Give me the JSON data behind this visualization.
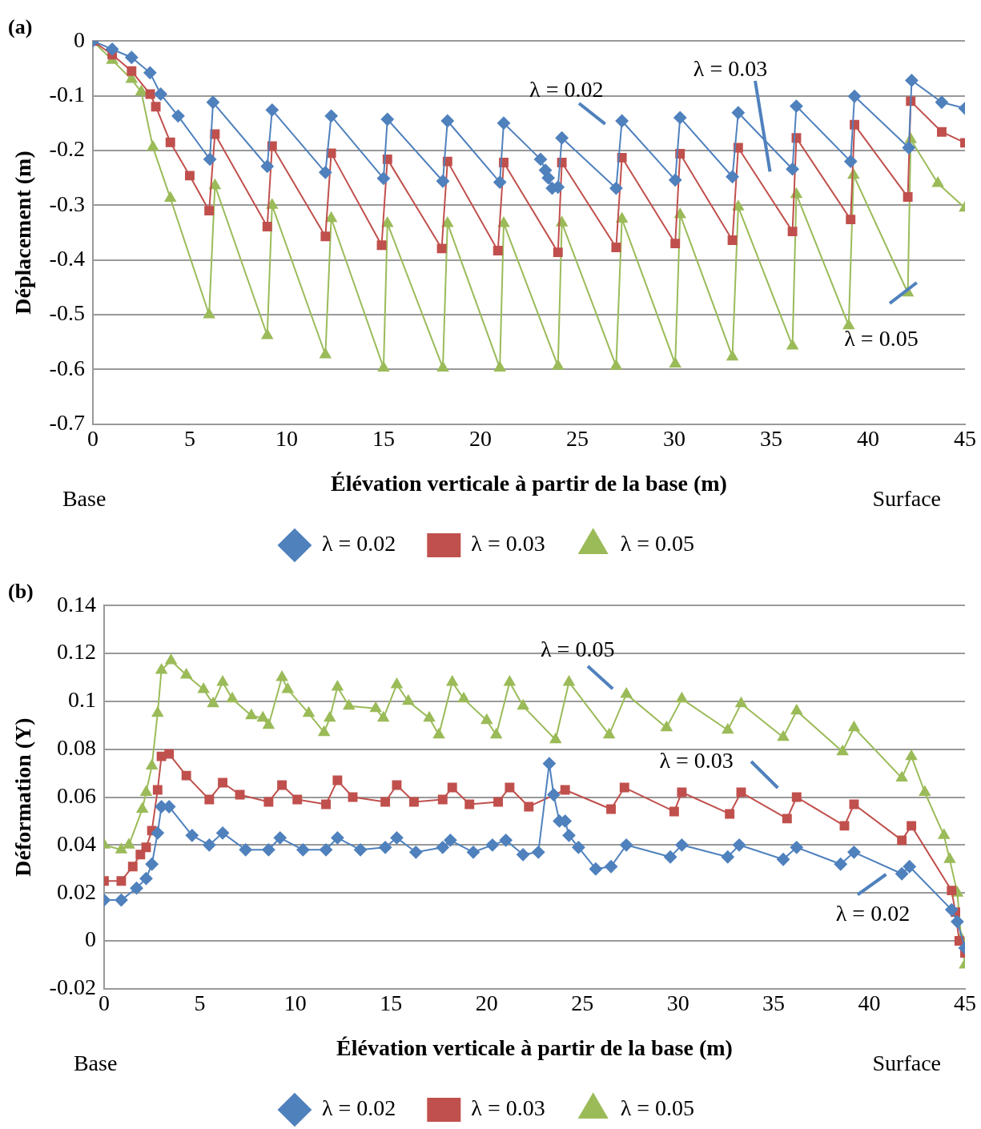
{
  "chart_data": [
    {
      "type": "line",
      "title": "(a)",
      "xlabel": "Élévation verticale à partir de la base (m)",
      "ylabel": "Déplacement (m)",
      "xlim": [
        0,
        45
      ],
      "xticks": [
        0,
        5,
        10,
        15,
        20,
        25,
        30,
        35,
        40,
        45
      ],
      "ylim": [
        -0.7,
        0
      ],
      "yticks": [
        -0.7,
        -0.6,
        -0.5,
        -0.4,
        -0.3,
        -0.2,
        -0.1,
        0
      ],
      "grid": "y",
      "legend": "bottom",
      "line_style": "solid",
      "series": [
        {
          "name": "λ = 0.02",
          "color": "#4f81bd",
          "marker": "diamond",
          "x": [
            0,
            1,
            2,
            2.95,
            3.5,
            4.4,
            6.04,
            6.2,
            9.0,
            9.25,
            12.0,
            12.3,
            15.0,
            15.2,
            18.06,
            18.3,
            21.0,
            21.2,
            23.1,
            23.35,
            23.5,
            23.7,
            24.0,
            24.2,
            27.0,
            27.3,
            30.05,
            30.3,
            33.0,
            33.3,
            36.1,
            36.3,
            39.1,
            39.3,
            42.1,
            42.25,
            43.8,
            45
          ],
          "values": [
            0,
            -0.015,
            -0.03,
            -0.058,
            -0.097,
            -0.137,
            -0.216,
            -0.112,
            -0.229,
            -0.126,
            -0.24,
            -0.137,
            -0.251,
            -0.143,
            -0.256,
            -0.146,
            -0.258,
            -0.15,
            -0.216,
            -0.236,
            -0.25,
            -0.269,
            -0.267,
            -0.177,
            -0.269,
            -0.146,
            -0.254,
            -0.14,
            -0.248,
            -0.131,
            -0.234,
            -0.119,
            -0.22,
            -0.101,
            -0.195,
            -0.072,
            -0.112,
            -0.123
          ]
        },
        {
          "name": "λ = 0.03",
          "color": "#c0504d",
          "marker": "square",
          "x": [
            0,
            1,
            2,
            2.96,
            3.25,
            4.0,
            5.0,
            6.0,
            6.3,
            9.0,
            9.25,
            12.0,
            12.3,
            14.9,
            15.2,
            18.0,
            18.3,
            20.9,
            21.2,
            24.0,
            24.2,
            27.0,
            27.3,
            30.05,
            30.3,
            33.0,
            33.3,
            36.1,
            36.3,
            39.1,
            39.3,
            42.05,
            42.2,
            43.8,
            45
          ],
          "values": [
            0,
            -0.025,
            -0.055,
            -0.097,
            -0.12,
            -0.185,
            -0.246,
            -0.31,
            -0.17,
            -0.339,
            -0.192,
            -0.357,
            -0.205,
            -0.373,
            -0.216,
            -0.379,
            -0.22,
            -0.383,
            -0.222,
            -0.386,
            -0.222,
            -0.377,
            -0.213,
            -0.37,
            -0.206,
            -0.364,
            -0.195,
            -0.348,
            -0.177,
            -0.326,
            -0.153,
            -0.285,
            -0.11,
            -0.166,
            -0.186
          ]
        },
        {
          "name": "λ = 0.05",
          "color": "#9bbb59",
          "marker": "triangle",
          "x": [
            0,
            1,
            2,
            2.5,
            3.1,
            4.0,
            6.0,
            6.3,
            9.0,
            9.25,
            12.0,
            12.3,
            15.0,
            15.2,
            18.06,
            18.3,
            21.0,
            21.2,
            24.0,
            24.2,
            27.0,
            27.3,
            30.05,
            30.3,
            33.0,
            33.3,
            36.1,
            36.3,
            39.0,
            39.25,
            42.05,
            42.2,
            43.6,
            45
          ],
          "values": [
            0,
            -0.035,
            -0.07,
            -0.093,
            -0.194,
            -0.287,
            -0.5,
            -0.264,
            -0.538,
            -0.3,
            -0.573,
            -0.324,
            -0.597,
            -0.333,
            -0.597,
            -0.333,
            -0.597,
            -0.333,
            -0.594,
            -0.332,
            -0.594,
            -0.325,
            -0.59,
            -0.317,
            -0.577,
            -0.303,
            -0.557,
            -0.28,
            -0.52,
            -0.245,
            -0.46,
            -0.18,
            -0.26,
            -0.305
          ]
        }
      ],
      "annotations": [
        "λ = 0.02",
        "λ = 0.03",
        "λ = 0.05",
        "Base",
        "Surface"
      ]
    },
    {
      "type": "line",
      "title": "(b)",
      "xlabel": "Élévation verticale à partir de la base (m)",
      "ylabel": "Déformation (Y)",
      "xlim": [
        0,
        45
      ],
      "xticks": [
        0,
        5,
        10,
        15,
        20,
        25,
        30,
        35,
        40,
        45
      ],
      "ylim": [
        -0.02,
        0.14
      ],
      "yticks": [
        -0.02,
        0,
        0.02,
        0.04,
        0.06,
        0.08,
        0.1,
        0.12,
        0.14
      ],
      "grid": "y",
      "legend": "bottom",
      "line_style": "solid",
      "series": [
        {
          "name": "λ = 0.02",
          "color": "#4f81bd",
          "marker": "diamond",
          "x": [
            0,
            0.9,
            1.7,
            2.2,
            2.5,
            2.8,
            3.0,
            3.4,
            4.6,
            5.5,
            6.2,
            7.4,
            8.6,
            9.2,
            10.4,
            11.6,
            12.2,
            13.4,
            14.7,
            15.3,
            16.3,
            17.7,
            18.1,
            19.3,
            20.3,
            21.0,
            21.9,
            22.7,
            23.27,
            23.5,
            23.8,
            24.1,
            24.3,
            24.8,
            25.7,
            26.5,
            27.3,
            29.6,
            30.2,
            32.6,
            33.2,
            35.5,
            36.2,
            38.5,
            39.2,
            41.7,
            42.1,
            44.3,
            44.6,
            45
          ],
          "values": [
            0.017,
            0.017,
            0.022,
            0.026,
            0.032,
            0.045,
            0.056,
            0.056,
            0.044,
            0.04,
            0.045,
            0.038,
            0.038,
            0.043,
            0.038,
            0.038,
            0.043,
            0.038,
            0.039,
            0.043,
            0.037,
            0.039,
            0.042,
            0.037,
            0.04,
            0.042,
            0.036,
            0.037,
            0.074,
            0.061,
            0.05,
            0.05,
            0.044,
            0.039,
            0.03,
            0.031,
            0.04,
            0.035,
            0.04,
            0.035,
            0.04,
            0.034,
            0.039,
            0.032,
            0.037,
            0.028,
            0.031,
            0.013,
            0.008,
            -0.003
          ]
        },
        {
          "name": "λ = 0.03",
          "color": "#c0504d",
          "marker": "square",
          "x": [
            0,
            0.9,
            1.5,
            1.9,
            2.2,
            2.5,
            2.8,
            3.0,
            3.4,
            4.3,
            5.5,
            6.2,
            7.1,
            8.6,
            9.3,
            10.1,
            11.6,
            12.2,
            13.0,
            14.7,
            15.3,
            16.2,
            17.7,
            18.2,
            19.1,
            20.6,
            21.2,
            22.2,
            24.1,
            26.5,
            27.2,
            29.8,
            30.2,
            32.7,
            33.3,
            35.7,
            36.2,
            38.7,
            39.2,
            41.7,
            42.2,
            44.3,
            44.5,
            44.7,
            45
          ],
          "values": [
            0.025,
            0.025,
            0.031,
            0.036,
            0.039,
            0.046,
            0.063,
            0.077,
            0.078,
            0.069,
            0.059,
            0.066,
            0.061,
            0.058,
            0.065,
            0.059,
            0.057,
            0.067,
            0.06,
            0.058,
            0.065,
            0.058,
            0.059,
            0.064,
            0.057,
            0.058,
            0.064,
            0.056,
            0.063,
            0.055,
            0.064,
            0.054,
            0.062,
            0.053,
            0.062,
            0.051,
            0.06,
            0.048,
            0.057,
            0.042,
            0.048,
            0.021,
            0.012,
            0,
            -0.005
          ]
        },
        {
          "name": "λ = 0.05",
          "color": "#9bbb59",
          "marker": "triangle",
          "x": [
            0,
            0.9,
            1.3,
            2.0,
            2.2,
            2.5,
            2.8,
            3.0,
            3.5,
            4.3,
            5.2,
            5.7,
            6.2,
            6.7,
            7.7,
            8.3,
            8.6,
            9.3,
            9.6,
            10.7,
            11.5,
            11.8,
            12.2,
            12.8,
            14.2,
            14.6,
            15.3,
            15.9,
            17.0,
            17.5,
            18.2,
            18.8,
            20.0,
            20.5,
            21.2,
            21.9,
            23.6,
            24.3,
            26.4,
            27.3,
            29.4,
            30.2,
            32.6,
            33.3,
            35.5,
            36.2,
            38.6,
            39.2,
            41.7,
            42.2,
            42.9,
            43.9,
            44.2,
            44.6,
            44.8,
            45
          ],
          "values": [
            0.04,
            0.038,
            0.04,
            0.055,
            0.062,
            0.073,
            0.095,
            0.113,
            0.117,
            0.111,
            0.105,
            0.099,
            0.108,
            0.101,
            0.094,
            0.093,
            0.09,
            0.11,
            0.105,
            0.095,
            0.087,
            0.093,
            0.106,
            0.098,
            0.097,
            0.093,
            0.107,
            0.1,
            0.093,
            0.086,
            0.108,
            0.101,
            0.092,
            0.086,
            0.108,
            0.098,
            0.084,
            0.108,
            0.086,
            0.103,
            0.089,
            0.101,
            0.088,
            0.099,
            0.085,
            0.096,
            0.079,
            0.089,
            0.068,
            0.077,
            0.062,
            0.044,
            0.034,
            0.02,
            0.001,
            -0.01
          ]
        }
      ],
      "annotations": [
        "λ = 0.05",
        "λ = 0.03",
        "λ = 0.02",
        "Base",
        "Surface"
      ]
    }
  ]
}
